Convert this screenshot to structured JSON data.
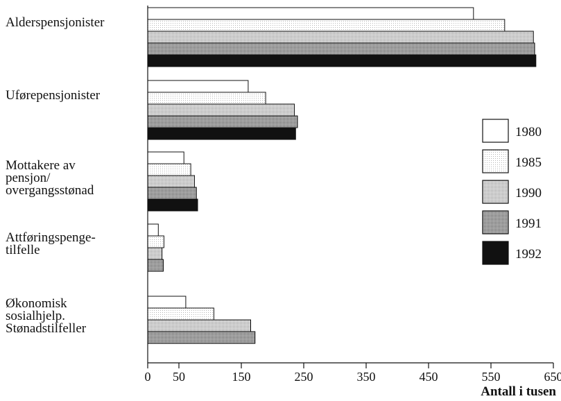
{
  "chart_data": {
    "type": "bar",
    "orientation": "horizontal",
    "categories": [
      [
        "Alderspensjonister"
      ],
      [
        "Uførepensjonister"
      ],
      [
        "Mottakere av",
        "pensjon/",
        "overgangsstønad"
      ],
      [
        "Attføringspenge-",
        "tilfelle"
      ],
      [
        "Økonomisk",
        "sosialhjelp.",
        "Stønadstilfeller"
      ]
    ],
    "series": [
      {
        "name": "1980",
        "values": [
          522,
          161,
          58,
          17,
          61
        ]
      },
      {
        "name": "1985",
        "values": [
          572,
          189,
          69,
          26,
          106
        ]
      },
      {
        "name": "1990",
        "values": [
          618,
          235,
          75,
          23,
          165
        ]
      },
      {
        "name": "1991",
        "values": [
          620,
          240,
          78,
          25,
          172
        ]
      },
      {
        "name": "1992",
        "values": [
          622,
          237,
          80,
          null,
          null
        ]
      }
    ],
    "series_fills": [
      "#ffffff",
      "#ececec",
      "#c8c8c8",
      "#8f8f8f",
      "#111111"
    ],
    "xlabel": "Antall i tusen",
    "xlim": [
      0,
      650
    ],
    "xticks": [
      0,
      50,
      150,
      250,
      350,
      450,
      550,
      650
    ],
    "xtick_labels": [
      "0",
      "50",
      "150",
      "250",
      "350",
      "450",
      "550",
      "650"
    ],
    "legend": {
      "position": "right",
      "entries": [
        "1980",
        "1985",
        "1990",
        "1991",
        "1992"
      ]
    },
    "grid": false
  }
}
